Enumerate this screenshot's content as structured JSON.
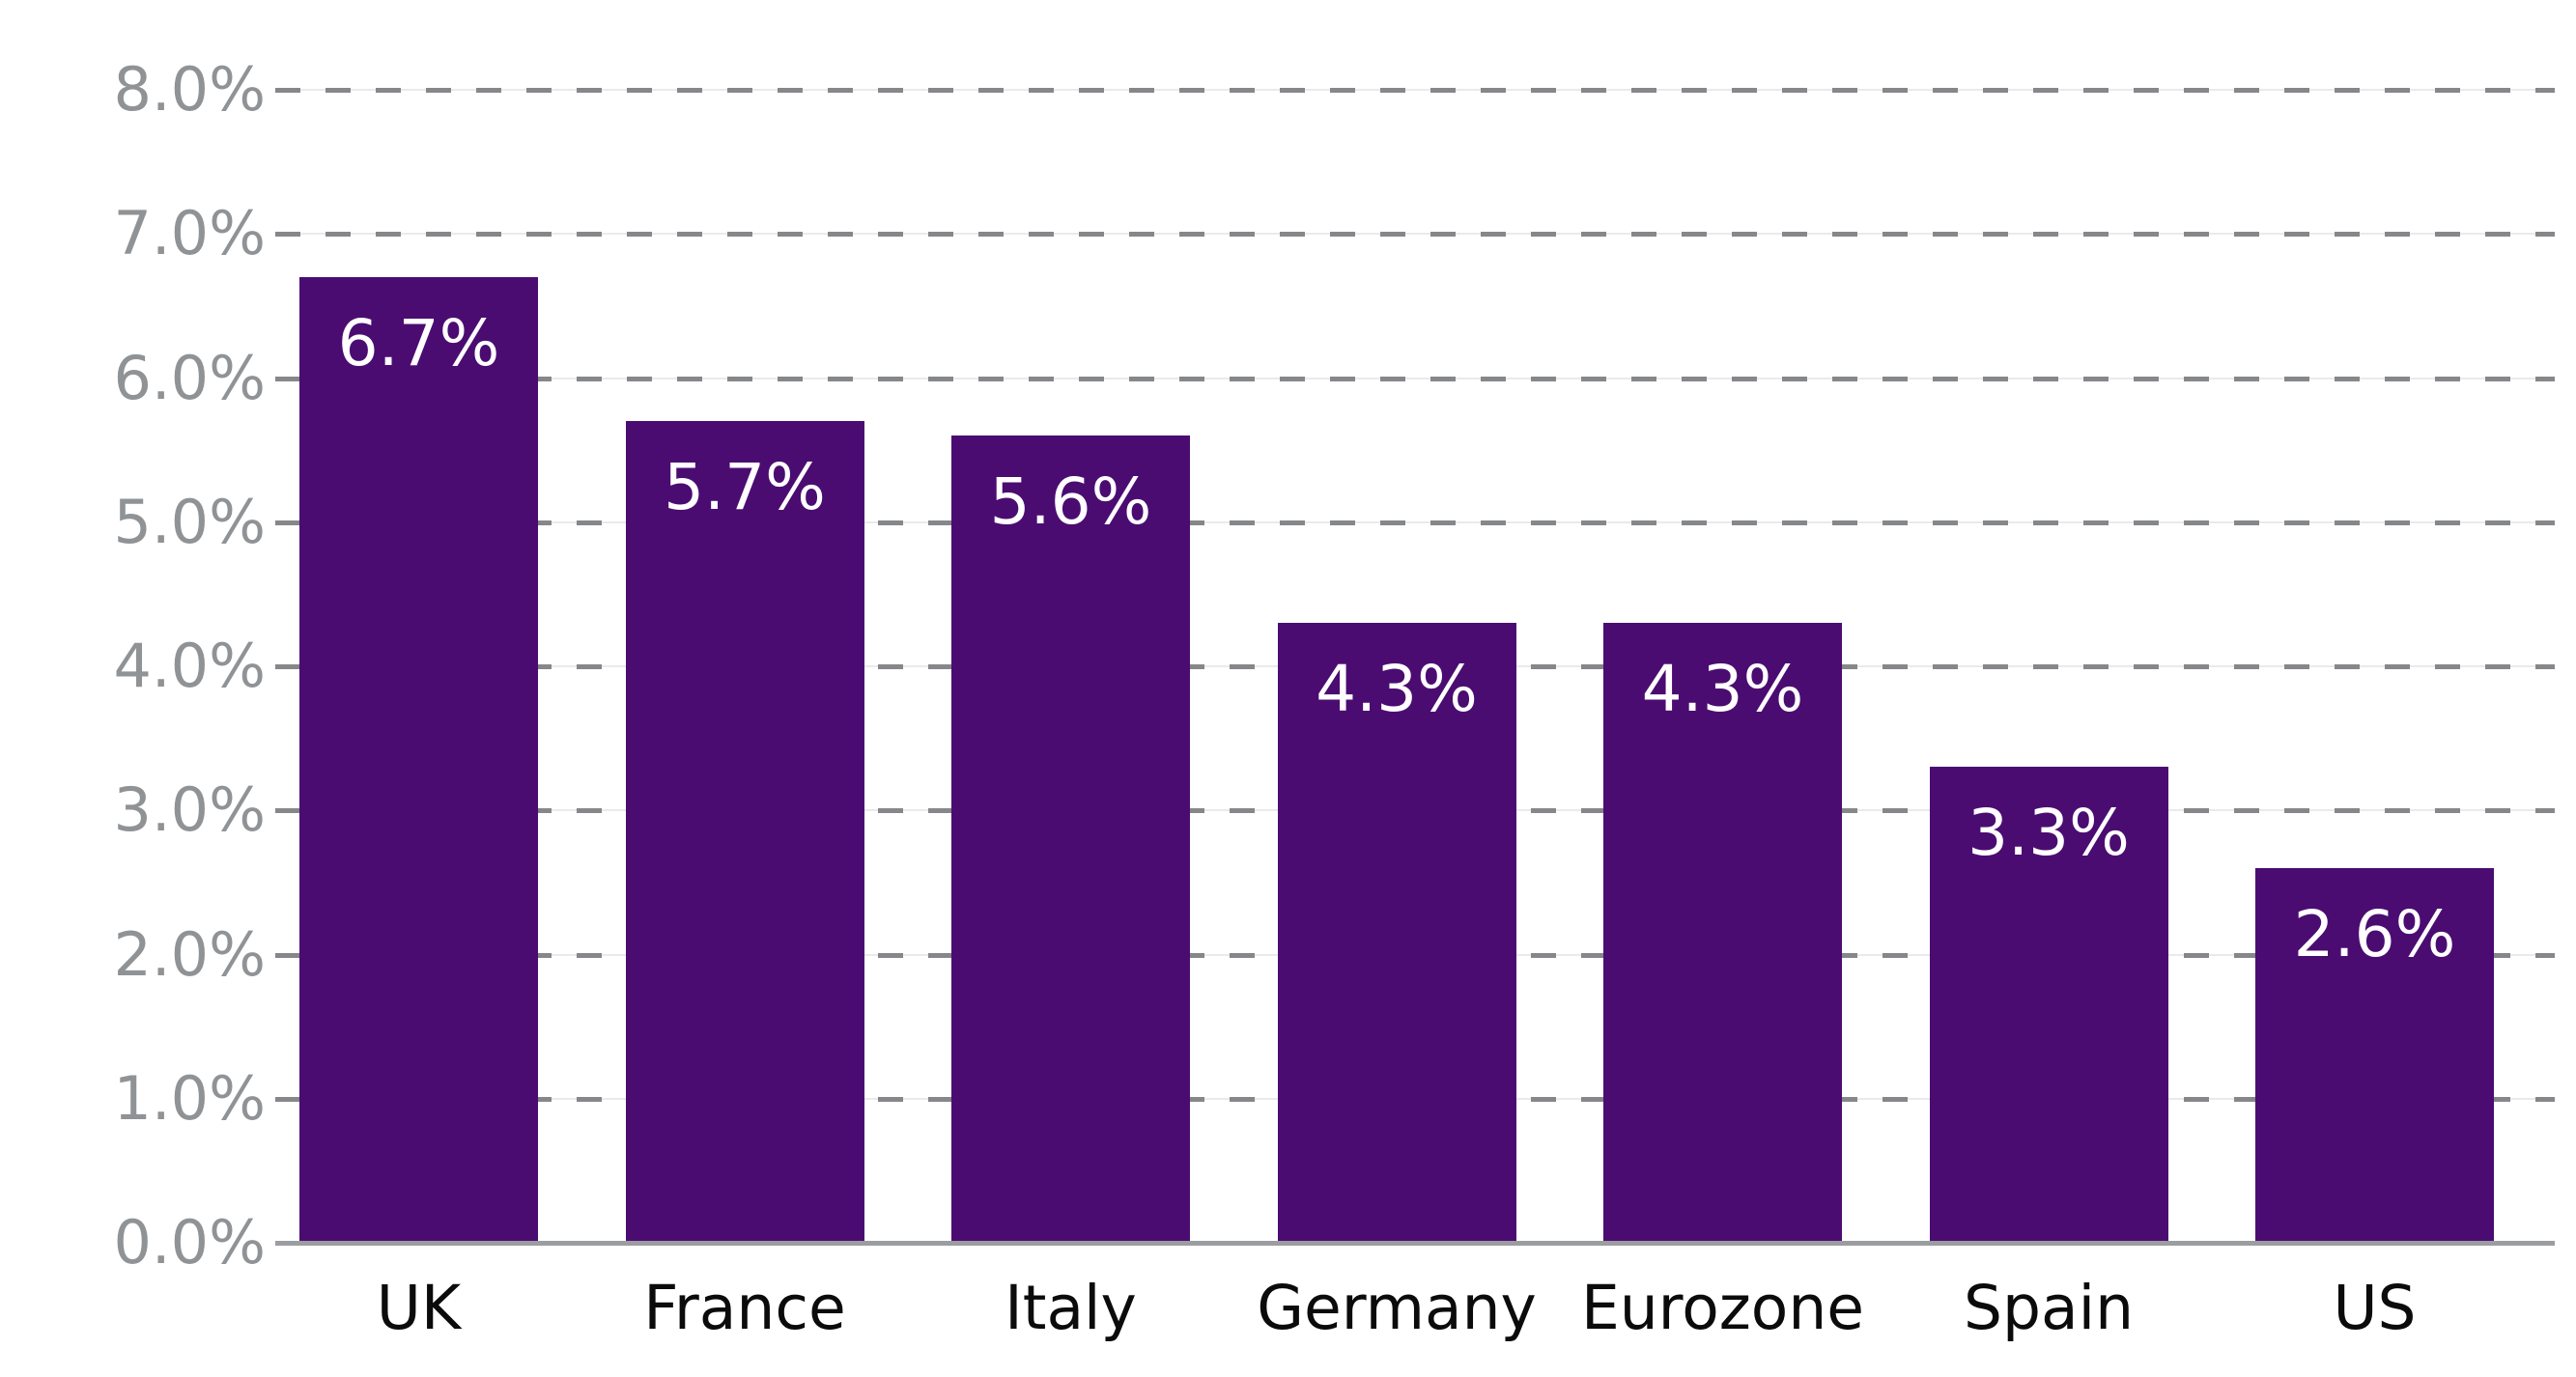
{
  "chart_data": {
    "type": "bar",
    "title": "",
    "xlabel": "",
    "ylabel": "",
    "categories": [
      "UK",
      "France",
      "Italy",
      "Germany",
      "Eurozone",
      "Spain",
      "US"
    ],
    "values": [
      6.7,
      5.7,
      5.6,
      4.3,
      4.3,
      3.3,
      2.6
    ],
    "bar_labels": [
      "6.7%",
      "5.7%",
      "5.6%",
      "4.3%",
      "4.3%",
      "3.3%",
      "2.6%"
    ],
    "y_ticks": [
      "0.0%",
      "1.0%",
      "2.0%",
      "3.0%",
      "4.0%",
      "5.0%",
      "6.0%",
      "7.0%",
      "8.0%"
    ],
    "y_tick_values": [
      0,
      1,
      2,
      3,
      4,
      5,
      6,
      7,
      8
    ],
    "ylim": [
      0,
      8
    ],
    "grid": "horizontal-dashed",
    "legend": "none",
    "bar_label_position": "inside-top",
    "colors": {
      "bar": "#4B0C72",
      "bar_label_text": "#FFFFFF",
      "y_tick_text": "#909396",
      "x_tick_text": "#0B0B0B",
      "grid_dash": "#85878A",
      "grid_faint_line": "#E9EAEB",
      "baseline": "#9B9DA0",
      "background": "#FFFFFF"
    }
  }
}
